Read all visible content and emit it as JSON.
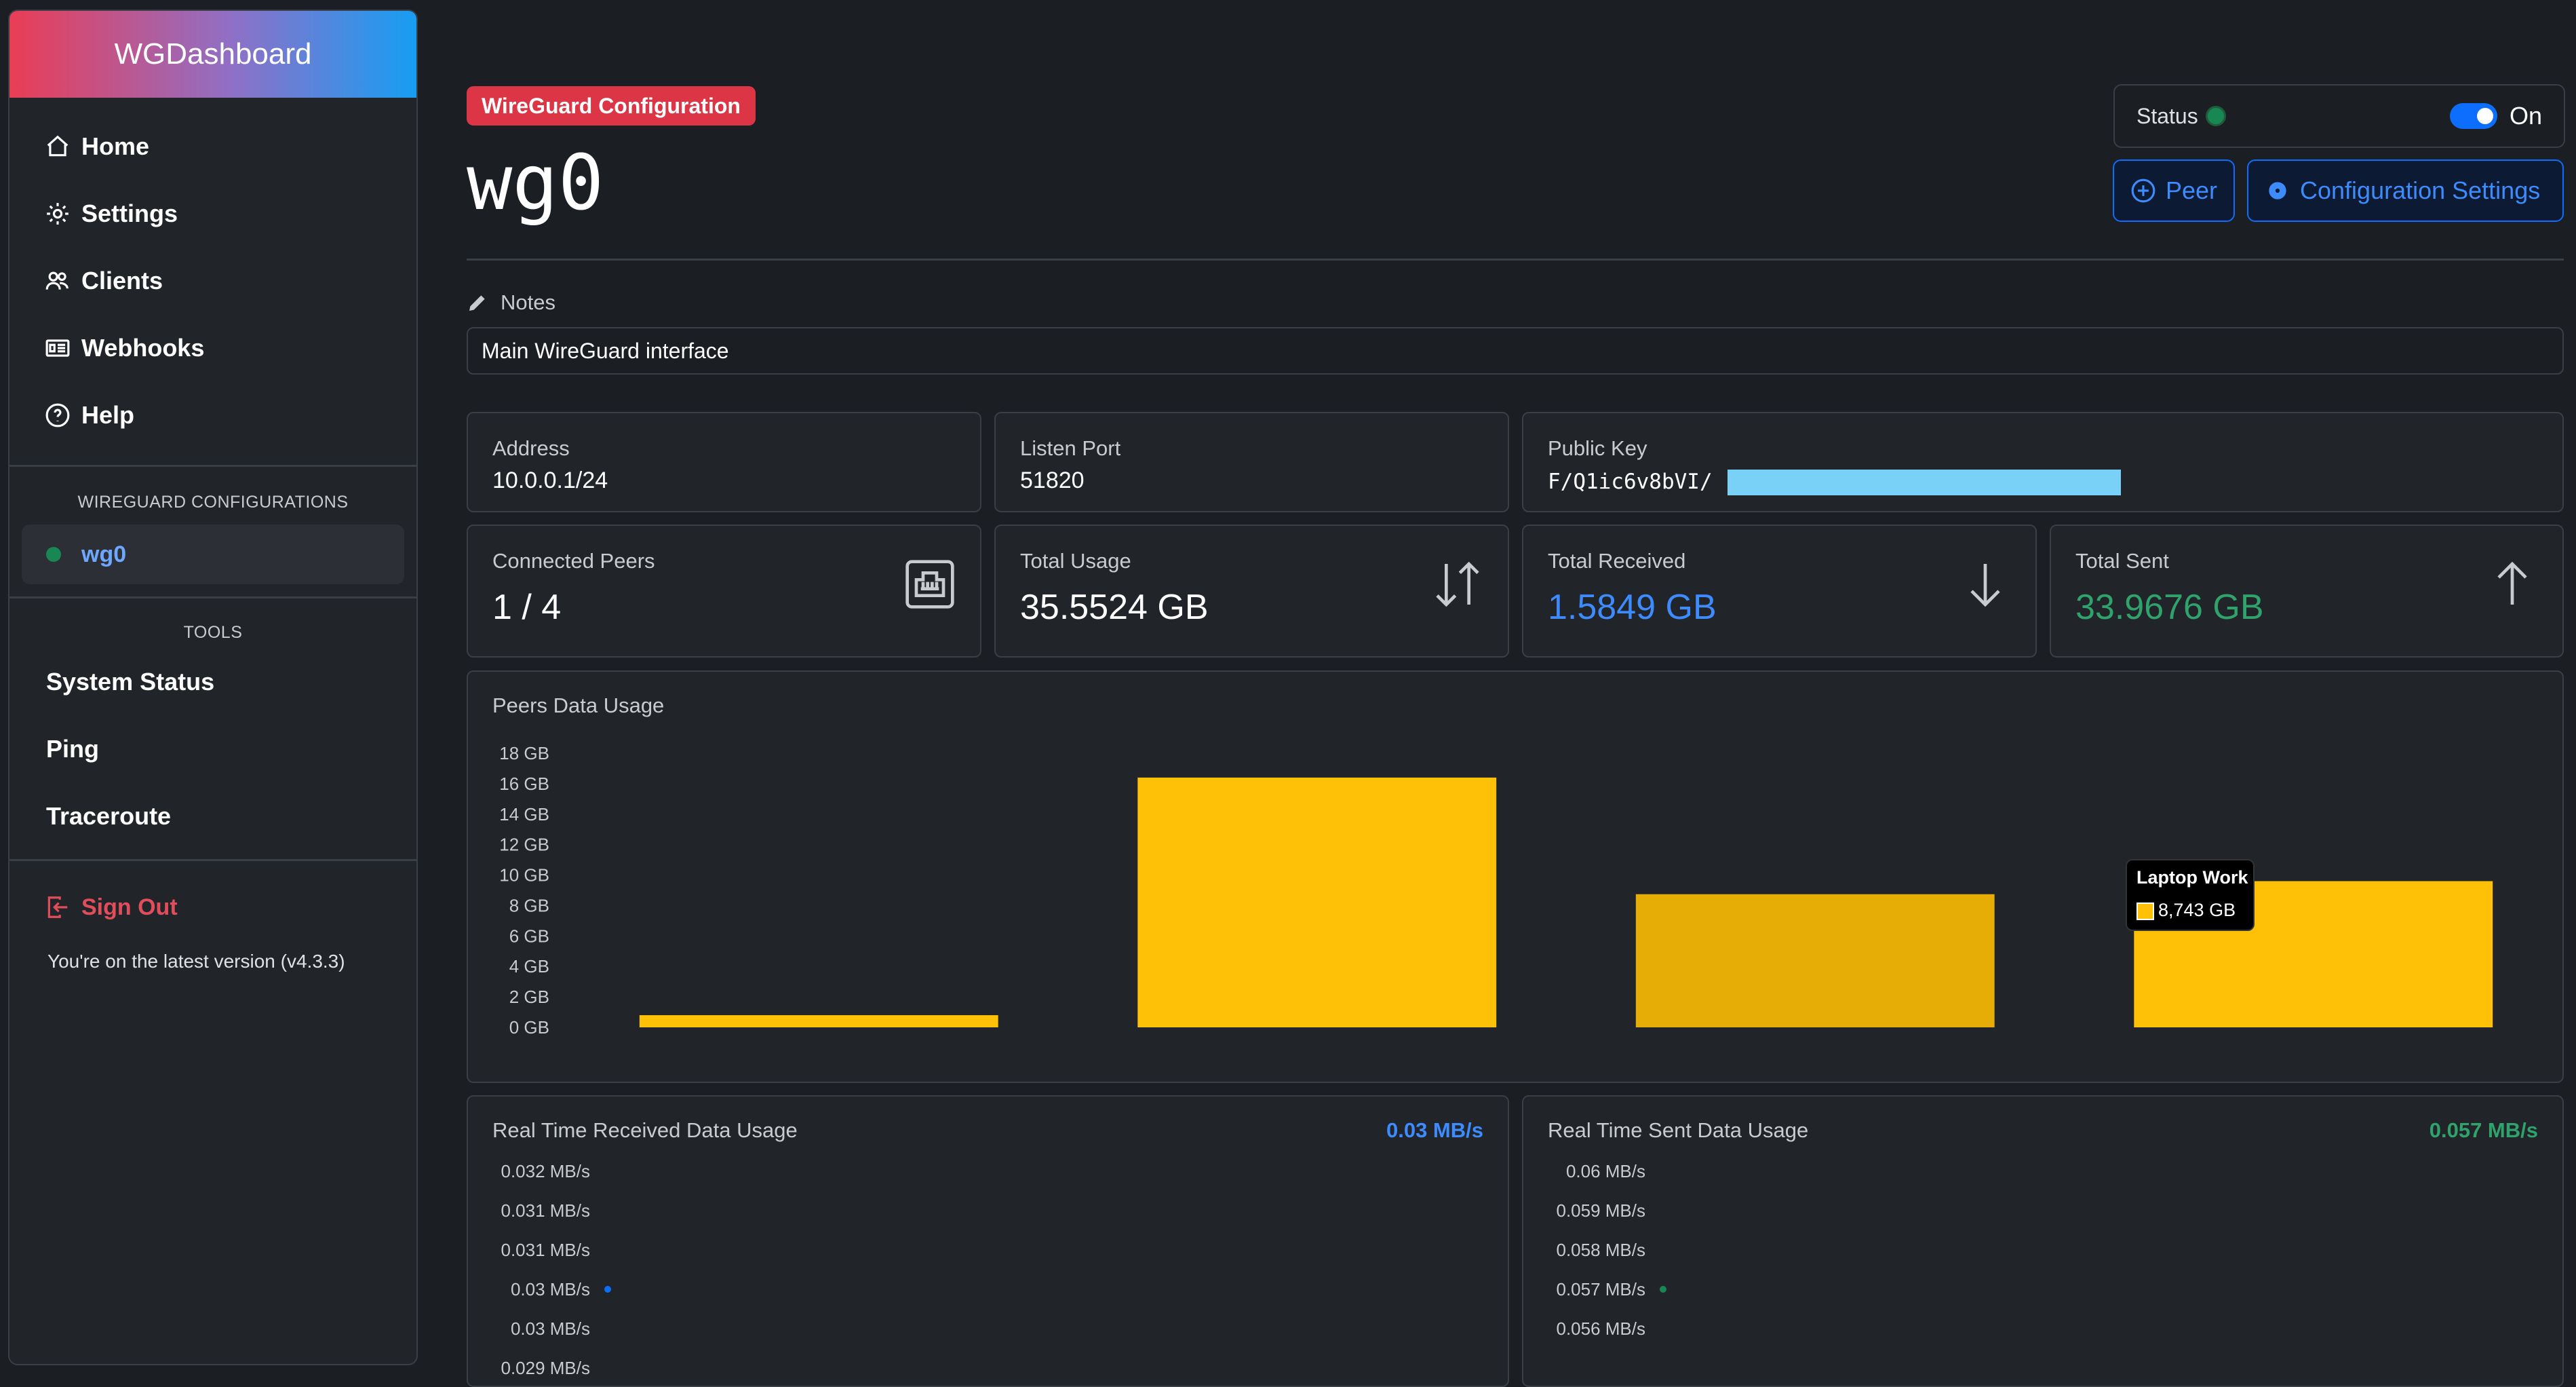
{
  "brand": "WGDashboard",
  "nav": [
    {
      "label": "Home",
      "icon": "house-icon"
    },
    {
      "label": "Settings",
      "icon": "gear-icon"
    },
    {
      "label": "Clients",
      "icon": "people-icon"
    },
    {
      "label": "Webhooks",
      "icon": "webhook-icon"
    },
    {
      "label": "Help",
      "icon": "question-circle-icon"
    }
  ],
  "configs": {
    "title": "WIREGUARD CONFIGURATIONS",
    "items": [
      {
        "label": "wg0"
      }
    ]
  },
  "tools": {
    "title": "TOOLS",
    "items": [
      "System Status",
      "Ping",
      "Traceroute"
    ]
  },
  "signout": "Sign Out",
  "version": "You're on the latest version (v4.3.3)",
  "header": {
    "badge": "WireGuard Configuration",
    "name": "wg0",
    "status_label": "Status",
    "toggle_label": "On",
    "peer_button": "Peer",
    "settings_button": "Configuration Settings"
  },
  "notes": {
    "label": "Notes",
    "value": "Main WireGuard interface"
  },
  "info": {
    "address": {
      "label": "Address",
      "value": "10.0.0.1/24"
    },
    "port": {
      "label": "Listen Port",
      "value": "51820"
    },
    "pubkey": {
      "label": "Public Key",
      "value_start": "F/Q1ic6v8bVI/",
      "value_end": "="
    }
  },
  "stats": {
    "peers": {
      "label": "Connected Peers",
      "value": "1 / 4"
    },
    "usage": {
      "label": "Total Usage",
      "value": "35.5524 GB"
    },
    "received": {
      "label": "Total Received",
      "value": "1.5849 GB",
      "color": "#3d8bfd"
    },
    "sent": {
      "label": "Total Sent",
      "value": "33.9676 GB",
      "color": "#2fa36b"
    }
  },
  "peers_chart": {
    "title": "Peers Data Usage",
    "tooltip_title": "Laptop Work",
    "tooltip_value": "8,743 GB"
  },
  "realtime": {
    "received": {
      "title": "Real Time Received Data Usage",
      "rate": "0.03 MB/s"
    },
    "sent": {
      "title": "Real Time Sent Data Usage",
      "rate": "0.057 MB/s"
    }
  },
  "chart_data": [
    {
      "type": "bar",
      "title": "Peers Data Usage",
      "categories": [
        "",
        "",
        "Laptop Work",
        ""
      ],
      "values": [
        0.8,
        16.4,
        8.743,
        9.6
      ],
      "ylim": [
        0,
        18
      ],
      "yticks": [
        "0 GB",
        "2 GB",
        "4 GB",
        "6 GB",
        "8 GB",
        "10 GB",
        "12 GB",
        "14 GB",
        "16 GB",
        "18 GB"
      ],
      "color": "#ffc107",
      "highlight_color": "#e6ad06"
    },
    {
      "type": "line",
      "title": "Real Time Received Data Usage",
      "yticks": [
        "0.032 MB/s",
        "0.031 MB/s",
        "0.031 MB/s",
        "0.03 MB/s",
        "0.03 MB/s",
        "0.029 MB/s"
      ],
      "points": [
        {
          "y": 0.03
        }
      ],
      "color": "#0d6efd"
    },
    {
      "type": "line",
      "title": "Real Time Sent Data Usage",
      "yticks": [
        "0.06 MB/s",
        "0.059 MB/s",
        "0.058 MB/s",
        "0.057 MB/s",
        "0.056 MB/s"
      ],
      "points": [
        {
          "y": 0.057
        }
      ],
      "color": "#198754"
    }
  ]
}
